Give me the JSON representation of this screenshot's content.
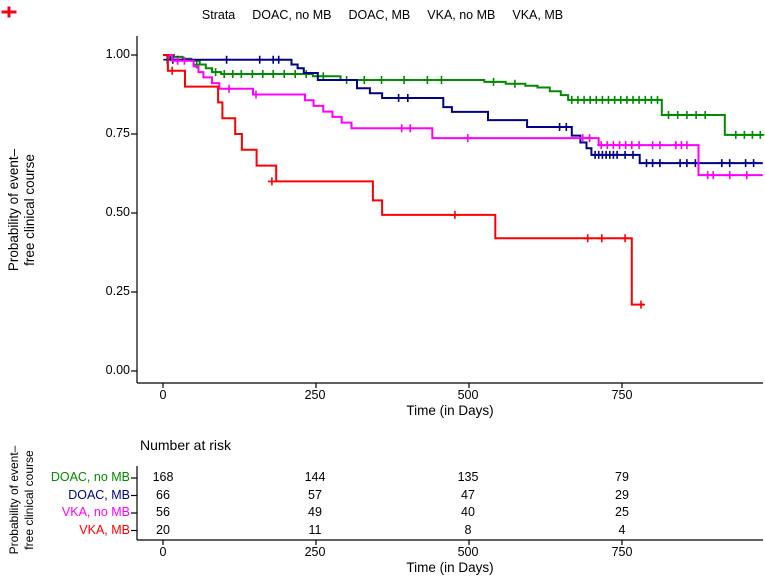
{
  "legend": {
    "title": "Strata",
    "items": [
      {
        "label": "DOAC, no MB",
        "color": "#008B00"
      },
      {
        "label": "DOAC, MB",
        "color": "#00008B"
      },
      {
        "label": "VKA, no MB",
        "color": "#FF00FF"
      },
      {
        "label": "VKA, MB",
        "color": "#FF0000"
      }
    ]
  },
  "axes": {
    "y_label_line1": "Probability of event–",
    "y_label_line2": "free clinical course",
    "x_label": "Time (in Days)",
    "y_tick_labels": [
      "1.00",
      "0.75",
      "0.50",
      "0.25",
      "0.00"
    ],
    "x_tick_labels": [
      "0",
      "250",
      "500",
      "750"
    ]
  },
  "chart_data": {
    "type": "line",
    "subtype": "kaplan-meier-step",
    "title": "",
    "xlabel": "Time (in Days)",
    "ylabel": "Probability of event–free clinical course",
    "xlim": [
      0,
      980
    ],
    "ylim": [
      0,
      1.0
    ],
    "x_tick_values": [
      0,
      250,
      500,
      750
    ],
    "y_tick_values": [
      1.0,
      0.75,
      0.5,
      0.25,
      0.0
    ],
    "grid": false,
    "legend_position": "top",
    "series": [
      {
        "name": "DOAC, no MB",
        "color": "#008B00",
        "steps": [
          [
            0,
            1
          ],
          [
            18,
            0.994
          ],
          [
            32,
            0.988
          ],
          [
            46,
            0.982
          ],
          [
            60,
            0.97
          ],
          [
            70,
            0.958
          ],
          [
            80,
            0.946
          ],
          [
            95,
            0.94
          ],
          [
            245,
            0.933
          ],
          [
            290,
            0.921
          ],
          [
            525,
            0.915
          ],
          [
            560,
            0.909
          ],
          [
            592,
            0.903
          ],
          [
            612,
            0.897
          ],
          [
            632,
            0.885
          ],
          [
            650,
            0.873
          ],
          [
            662,
            0.858
          ],
          [
            815,
            0.81
          ],
          [
            918,
            0.747
          ],
          [
            980,
            0.747
          ]
        ],
        "censors": [
          [
            55,
            0.97
          ],
          [
            86,
            0.946
          ],
          [
            100,
            0.94
          ],
          [
            114,
            0.94
          ],
          [
            128,
            0.94
          ],
          [
            146,
            0.94
          ],
          [
            163,
            0.94
          ],
          [
            180,
            0.94
          ],
          [
            198,
            0.94
          ],
          [
            216,
            0.94
          ],
          [
            234,
            0.94
          ],
          [
            262,
            0.933
          ],
          [
            300,
            0.921
          ],
          [
            329,
            0.921
          ],
          [
            357,
            0.921
          ],
          [
            394,
            0.921
          ],
          [
            432,
            0.921
          ],
          [
            455,
            0.921
          ],
          [
            540,
            0.915
          ],
          [
            575,
            0.909
          ],
          [
            668,
            0.858
          ],
          [
            678,
            0.858
          ],
          [
            688,
            0.858
          ],
          [
            698,
            0.858
          ],
          [
            708,
            0.858
          ],
          [
            718,
            0.858
          ],
          [
            728,
            0.858
          ],
          [
            738,
            0.858
          ],
          [
            748,
            0.858
          ],
          [
            758,
            0.858
          ],
          [
            768,
            0.858
          ],
          [
            778,
            0.858
          ],
          [
            788,
            0.858
          ],
          [
            798,
            0.858
          ],
          [
            808,
            0.858
          ],
          [
            826,
            0.81
          ],
          [
            841,
            0.81
          ],
          [
            856,
            0.81
          ],
          [
            871,
            0.81
          ],
          [
            886,
            0.81
          ],
          [
            936,
            0.747
          ],
          [
            950,
            0.747
          ],
          [
            963,
            0.747
          ],
          [
            976,
            0.747
          ]
        ]
      },
      {
        "name": "DOAC, MB",
        "color": "#00008B",
        "steps": [
          [
            0,
            1
          ],
          [
            12,
            0.985
          ],
          [
            210,
            0.97
          ],
          [
            220,
            0.958
          ],
          [
            230,
            0.943
          ],
          [
            253,
            0.921
          ],
          [
            317,
            0.895
          ],
          [
            338,
            0.879
          ],
          [
            358,
            0.864
          ],
          [
            458,
            0.835
          ],
          [
            472,
            0.82
          ],
          [
            531,
            0.794
          ],
          [
            595,
            0.772
          ],
          [
            668,
            0.745
          ],
          [
            682,
            0.723
          ],
          [
            692,
            0.705
          ],
          [
            700,
            0.684
          ],
          [
            779,
            0.658
          ],
          [
            980,
            0.658
          ]
        ],
        "censors": [
          [
            7,
            0.985
          ],
          [
            16,
            0.985
          ],
          [
            24,
            0.985
          ],
          [
            104,
            0.985
          ],
          [
            158,
            0.985
          ],
          [
            180,
            0.985
          ],
          [
            189,
            0.985
          ],
          [
            385,
            0.864
          ],
          [
            400,
            0.864
          ],
          [
            648,
            0.772
          ],
          [
            659,
            0.772
          ],
          [
            706,
            0.684
          ],
          [
            712,
            0.684
          ],
          [
            718,
            0.684
          ],
          [
            724,
            0.684
          ],
          [
            730,
            0.684
          ],
          [
            736,
            0.684
          ],
          [
            742,
            0.684
          ],
          [
            755,
            0.684
          ],
          [
            768,
            0.684
          ],
          [
            790,
            0.658
          ],
          [
            800,
            0.658
          ],
          [
            812,
            0.658
          ],
          [
            845,
            0.658
          ],
          [
            856,
            0.658
          ],
          [
            870,
            0.658
          ],
          [
            913,
            0.658
          ],
          [
            926,
            0.658
          ],
          [
            952,
            0.658
          ],
          [
            965,
            0.658
          ]
        ]
      },
      {
        "name": "VKA, no MB",
        "color": "#FF00FF",
        "steps": [
          [
            0,
            1
          ],
          [
            15,
            0.982
          ],
          [
            50,
            0.964
          ],
          [
            58,
            0.946
          ],
          [
            66,
            0.929
          ],
          [
            80,
            0.911
          ],
          [
            92,
            0.893
          ],
          [
            147,
            0.875
          ],
          [
            232,
            0.857
          ],
          [
            246,
            0.839
          ],
          [
            262,
            0.821
          ],
          [
            277,
            0.804
          ],
          [
            292,
            0.786
          ],
          [
            308,
            0.768
          ],
          [
            440,
            0.737
          ],
          [
            712,
            0.715
          ],
          [
            875,
            0.62
          ],
          [
            980,
            0.62
          ]
        ],
        "censors": [
          [
            24,
            0.982
          ],
          [
            35,
            0.982
          ],
          [
            108,
            0.893
          ],
          [
            152,
            0.875
          ],
          [
            390,
            0.768
          ],
          [
            404,
            0.768
          ],
          [
            498,
            0.737
          ],
          [
            686,
            0.737
          ],
          [
            697,
            0.737
          ],
          [
            716,
            0.715
          ],
          [
            726,
            0.715
          ],
          [
            736,
            0.715
          ],
          [
            746,
            0.715
          ],
          [
            756,
            0.715
          ],
          [
            766,
            0.715
          ],
          [
            778,
            0.715
          ],
          [
            800,
            0.715
          ],
          [
            812,
            0.715
          ],
          [
            838,
            0.715
          ],
          [
            847,
            0.715
          ],
          [
            856,
            0.715
          ],
          [
            890,
            0.62
          ],
          [
            899,
            0.62
          ],
          [
            926,
            0.62
          ],
          [
            954,
            0.62
          ]
        ]
      },
      {
        "name": "VKA, MB",
        "color": "#FF0000",
        "steps": [
          [
            0,
            1
          ],
          [
            8,
            0.95
          ],
          [
            36,
            0.9
          ],
          [
            90,
            0.85
          ],
          [
            97,
            0.8
          ],
          [
            118,
            0.75
          ],
          [
            129,
            0.7
          ],
          [
            153,
            0.65
          ],
          [
            185,
            0.6
          ],
          [
            343,
            0.54
          ],
          [
            358,
            0.494
          ],
          [
            543,
            0.42
          ],
          [
            766,
            0.21
          ],
          [
            786,
            0.21
          ]
        ],
        "censors": [
          [
            15,
            0.95
          ],
          [
            178,
            0.6
          ],
          [
            477,
            0.494
          ],
          [
            694,
            0.42
          ],
          [
            717,
            0.42
          ],
          [
            755,
            0.42
          ],
          [
            781,
            0.21
          ]
        ]
      }
    ]
  },
  "risk_table": {
    "title": "Number at risk",
    "y_label_line1": "Probability of event–",
    "y_label_line2": "free clinical course",
    "x_label": "Time (in Days)",
    "x_tick_labels": [
      "0",
      "250",
      "500",
      "750"
    ],
    "rows": [
      {
        "label": "DOAC, no MB",
        "color": "#008B00",
        "counts": [
          "168",
          "144",
          "135",
          "79"
        ]
      },
      {
        "label": "DOAC, MB",
        "color": "#00008B",
        "counts": [
          "66",
          "57",
          "47",
          "29"
        ]
      },
      {
        "label": "VKA, no MB",
        "color": "#FF00FF",
        "counts": [
          "56",
          "49",
          "40",
          "25"
        ]
      },
      {
        "label": "VKA, MB",
        "color": "#FF0000",
        "counts": [
          "20",
          "11",
          "8",
          "4"
        ]
      }
    ]
  }
}
